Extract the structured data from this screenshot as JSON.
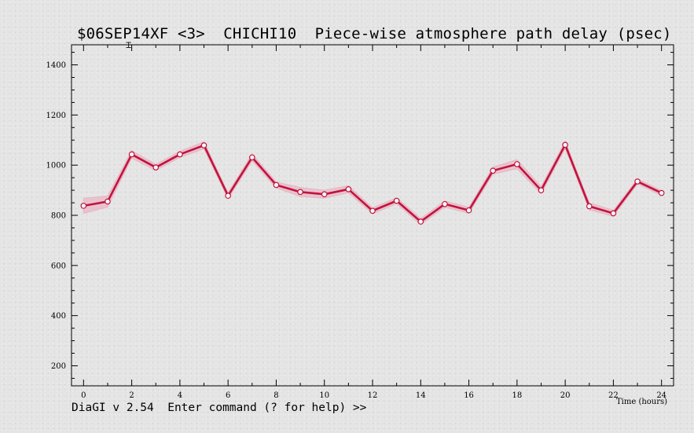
{
  "window": {
    "title": "$06SEP14XF <3>  CHICHI10  Piece-wise atmosphere path delay (psec)",
    "status_prompt": "DiaGI v 2.54  Enter command (? for help) >>"
  },
  "colors": {
    "line": "#c0143c",
    "band": "#eab4c4",
    "marker_fill": "#ffffff",
    "background": "#e4e4e4"
  },
  "chart_data": {
    "type": "line",
    "title": "$06SEP14XF <3>  CHICHI10  Piece-wise atmosphere path delay (psec)",
    "xlabel": "Time (hours)",
    "ylabel": "",
    "xlim": [
      -0.5,
      24.5
    ],
    "ylim": [
      120,
      1480
    ],
    "x_ticks": [
      0,
      2,
      4,
      6,
      8,
      10,
      12,
      14,
      16,
      18,
      20,
      22,
      24
    ],
    "y_ticks": [
      200,
      400,
      600,
      800,
      1000,
      1200,
      1400
    ],
    "grid": false,
    "series": [
      {
        "x": [
          0,
          1,
          2,
          3,
          4,
          5,
          6,
          7,
          8,
          9,
          10,
          11,
          12,
          13,
          14,
          15,
          16,
          17,
          18,
          19,
          20,
          21,
          22,
          23,
          24
        ],
        "values": [
          838,
          855,
          1043,
          991,
          1043,
          1079,
          878,
          1031,
          921,
          893,
          884,
          904,
          818,
          858,
          775,
          845,
          820,
          978,
          1004,
          900,
          1081,
          836,
          808,
          935,
          889
        ],
        "uncertainty": [
          30,
          22,
          15,
          12,
          12,
          14,
          12,
          14,
          12,
          18,
          16,
          14,
          12,
          12,
          12,
          12,
          12,
          14,
          18,
          14,
          14,
          14,
          12,
          10,
          10
        ]
      }
    ]
  }
}
